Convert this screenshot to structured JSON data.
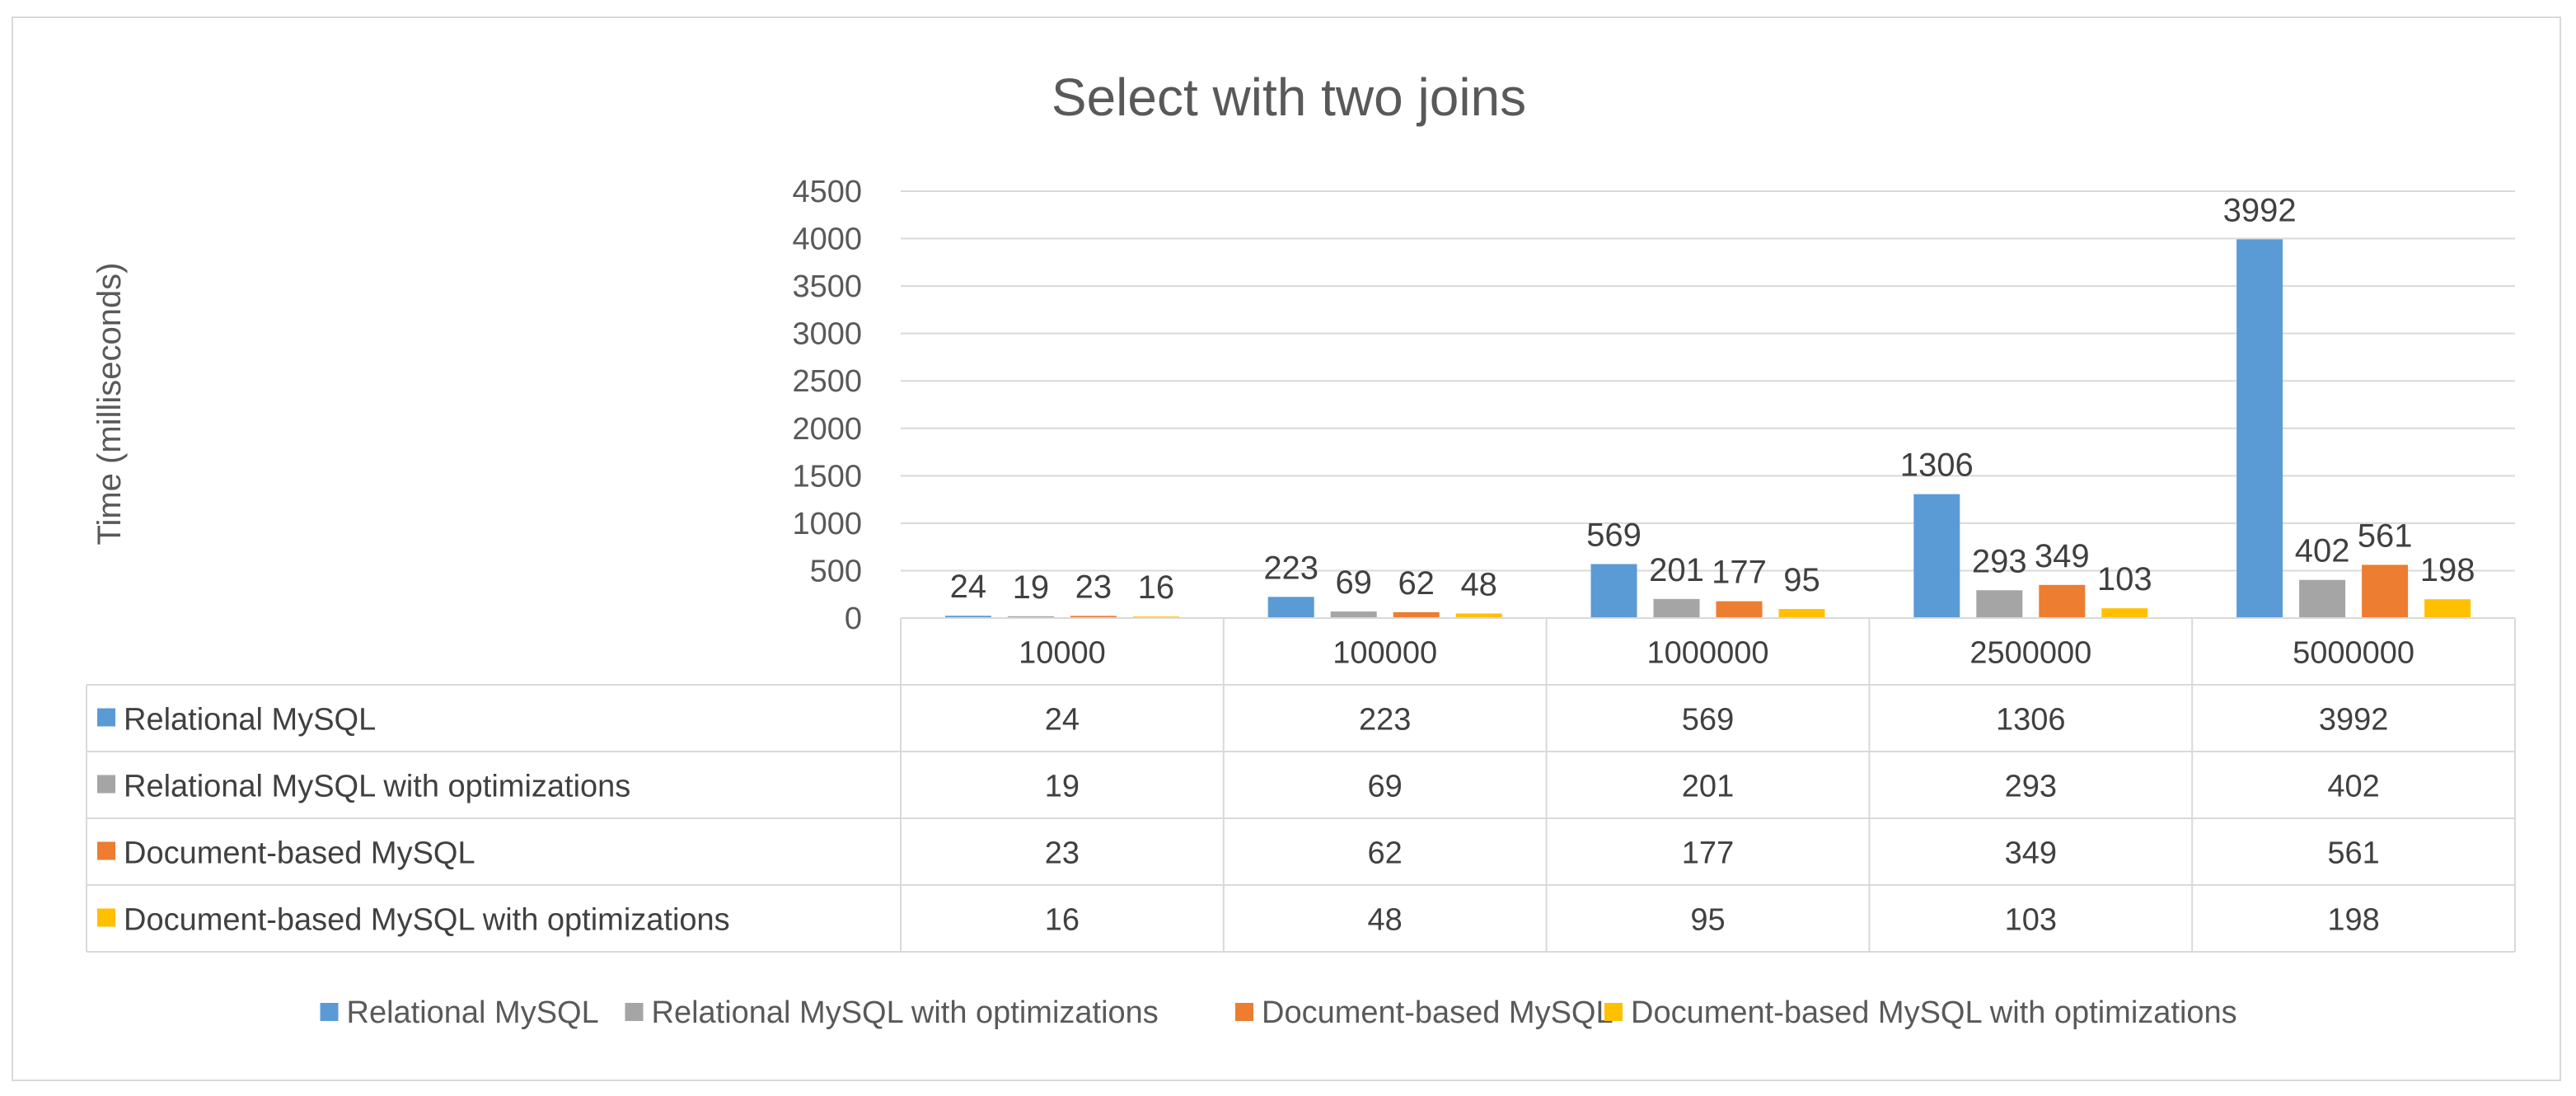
{
  "chart_data": {
    "type": "bar",
    "title": "Select with two joins",
    "xlabel": "",
    "ylabel": "Time (milliseconds)",
    "ylim": [
      0,
      4500
    ],
    "yticks": [
      0,
      500,
      1000,
      1500,
      2000,
      2500,
      3000,
      3500,
      4000,
      4500
    ],
    "grid": true,
    "legend_position": "bottom",
    "data_table": true,
    "categories": [
      "10000",
      "100000",
      "1000000",
      "2500000",
      "5000000"
    ],
    "series": [
      {
        "name": "Relational MySQL",
        "color": "#5b9bd5",
        "values": [
          24,
          223,
          569,
          1306,
          3992
        ]
      },
      {
        "name": "Relational MySQL with optimizations",
        "color": "#a5a5a5",
        "values": [
          19,
          69,
          201,
          293,
          402
        ]
      },
      {
        "name": "Document-based MySQL",
        "color": "#ed7d31",
        "values": [
          23,
          62,
          177,
          349,
          561
        ]
      },
      {
        "name": "Document-based MySQL with optimizations",
        "color": "#ffc000",
        "values": [
          16,
          48,
          95,
          103,
          198
        ]
      }
    ]
  }
}
